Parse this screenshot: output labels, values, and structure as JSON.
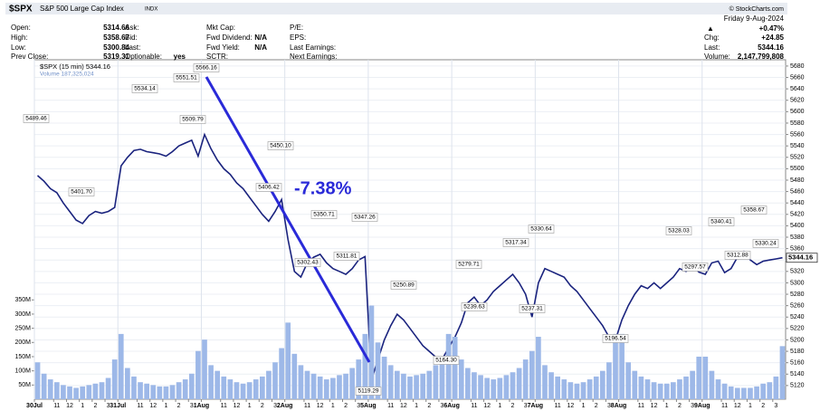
{
  "header": {
    "symbol": "$SPX",
    "name": "S&P 500 Large Cap Index",
    "exchange": "INDX",
    "copyright": "© StockCharts.com",
    "columns": [
      [
        {
          "label": "Open:",
          "value": "5314.66"
        },
        {
          "label": "High:",
          "value": "5358.67"
        },
        {
          "label": "Low:",
          "value": "5300.84"
        },
        {
          "label": "Prev Close:",
          "value": "5319.31"
        }
      ],
      [
        {
          "label": "Ask:"
        },
        {
          "label": "Bid:"
        },
        {
          "label": "Last:"
        },
        {
          "label": "Optionable:",
          "value": "yes"
        }
      ],
      [
        {
          "label": "Mkt Cap:"
        },
        {
          "label": "Fwd Dividend:",
          "value": "N/A"
        },
        {
          "label": "Fwd Yield:",
          "value": "N/A"
        },
        {
          "label": "SCTR:"
        }
      ],
      [
        {
          "label": "P/E:"
        },
        {
          "label": "EPS:"
        },
        {
          "label": "Last Earnings:"
        },
        {
          "label": "Next Earnings:"
        }
      ]
    ],
    "date": "Friday  9-Aug-2024",
    "change_pct": "+0.47%",
    "right": [
      {
        "label": "Chg:",
        "value": "+24.85"
      },
      {
        "label": "Last:",
        "value": "5344.16"
      },
      {
        "label": "Volume:",
        "value": "2,147,799,808"
      }
    ]
  },
  "chart_data": {
    "type": "line",
    "categories": [
      "30Jul",
      null,
      null,
      "11",
      null,
      "12",
      null,
      "1",
      null,
      "2",
      null,
      "3",
      null,
      "31Jul",
      null,
      null,
      "11",
      null,
      "12",
      null,
      "1",
      null,
      "2",
      null,
      "3",
      null,
      "1Aug",
      null,
      null,
      "11",
      null,
      "12",
      null,
      "1",
      null,
      "2",
      null,
      "3",
      null,
      "2Aug",
      null,
      null,
      "11",
      null,
      "12",
      null,
      "1",
      null,
      "2",
      null,
      "3",
      null,
      "5Aug",
      null,
      null,
      "11",
      null,
      "12",
      null,
      "1",
      null,
      "2",
      null,
      "3",
      null,
      "6Aug",
      null,
      null,
      "11",
      null,
      "12",
      null,
      "1",
      null,
      "2",
      null,
      "3",
      null,
      "7Aug",
      null,
      null,
      "11",
      null,
      "12",
      null,
      "1",
      null,
      "2",
      null,
      "3",
      null,
      "8Aug",
      null,
      null,
      "11",
      null,
      "12",
      null,
      "1",
      null,
      "2",
      null,
      "3",
      null,
      "9Aug",
      null,
      null,
      "11",
      null,
      "12",
      null,
      "1",
      null,
      "2",
      null,
      "3",
      null
    ],
    "series": [
      {
        "name": "$SPX (15 min) 5344.16",
        "color": "#1a237e",
        "values": [
          5488,
          5478,
          5465,
          5458,
          5440,
          5425,
          5410,
          5404,
          5418,
          5425,
          5422,
          5425,
          5432,
          5505,
          5520,
          5532,
          5534,
          5530,
          5528,
          5526,
          5522,
          5530,
          5540,
          5545,
          5550,
          5522,
          5560,
          5535,
          5515,
          5500,
          5490,
          5475,
          5465,
          5450,
          5435,
          5420,
          5408,
          5425,
          5446,
          5376,
          5320,
          5310,
          5335,
          5345,
          5350,
          5335,
          5325,
          5320,
          5315,
          5325,
          5340,
          5346,
          5130,
          5165,
          5200,
          5225,
          5245,
          5235,
          5220,
          5205,
          5190,
          5180,
          5170,
          5166,
          5186,
          5205,
          5230,
          5265,
          5275,
          5260,
          5270,
          5285,
          5295,
          5305,
          5315,
          5300,
          5280,
          5240,
          5300,
          5325,
          5320,
          5315,
          5310,
          5295,
          5285,
          5270,
          5255,
          5240,
          5225,
          5205,
          5200,
          5235,
          5260,
          5280,
          5295,
          5290,
          5300,
          5290,
          5300,
          5310,
          5325,
          5320,
          5330,
          5319,
          5315,
          5335,
          5338,
          5318,
          5325,
          5345,
          5355,
          5340,
          5332,
          5338,
          5340,
          5342,
          5344
        ]
      },
      {
        "name": "Volume 187,325,024",
        "type": "bar",
        "axis": "y2",
        "color": "#9db8e8",
        "values": [
          130,
          90,
          70,
          60,
          50,
          45,
          40,
          45,
          50,
          55,
          60,
          75,
          140,
          230,
          110,
          80,
          60,
          55,
          50,
          45,
          45,
          50,
          60,
          70,
          90,
          170,
          210,
          120,
          100,
          80,
          70,
          60,
          55,
          60,
          70,
          80,
          100,
          130,
          180,
          270,
          160,
          120,
          100,
          90,
          80,
          70,
          75,
          85,
          90,
          110,
          140,
          230,
          330,
          200,
          150,
          120,
          100,
          90,
          80,
          85,
          90,
          100,
          120,
          150,
          230,
          220,
          140,
          110,
          95,
          85,
          75,
          70,
          75,
          85,
          95,
          110,
          140,
          170,
          220,
          120,
          95,
          80,
          70,
          60,
          55,
          60,
          70,
          80,
          100,
          130,
          230,
          230,
          130,
          100,
          80,
          70,
          60,
          55,
          55,
          60,
          70,
          80,
          100,
          150,
          150,
          100,
          70,
          55,
          45,
          40,
          40,
          40,
          45,
          55,
          60,
          80,
          187
        ]
      }
    ],
    "ylim": [
      5096,
      5691
    ],
    "yticks": [
      5120,
      5140,
      5160,
      5180,
      5200,
      5220,
      5240,
      5260,
      5280,
      5300,
      5320,
      5340,
      5360,
      5380,
      5400,
      5420,
      5440,
      5460,
      5480,
      5500,
      5520,
      5540,
      5560,
      5580,
      5600,
      5620,
      5640,
      5660,
      5680
    ],
    "y2lim": [
      0,
      1196
    ],
    "y2ticks": [
      {
        "value": 50,
        "label": "50M"
      },
      {
        "value": 100,
        "label": "100M"
      },
      {
        "value": 150,
        "label": "150M"
      },
      {
        "value": 200,
        "label": "200M"
      },
      {
        "value": 250,
        "label": "250M"
      },
      {
        "value": 300,
        "label": "300M"
      },
      {
        "value": 350,
        "label": "350M"
      }
    ],
    "last_price_label": "5344.16",
    "move_label": "-7.38%",
    "price_labels": [
      "5489.46",
      "5401.70",
      "5534.14",
      "5551.51",
      "5509.79",
      "5566.16",
      "5450.10",
      "5406.42",
      "5350.71",
      "5347.26",
      "5302.43",
      "5311.81",
      "5119.29",
      "5250.89",
      "5164.30",
      "5279.71",
      "5239.63",
      "5317.34",
      "5330.64",
      "5237.31",
      "5196.54",
      "5328.03",
      "5297.57",
      "5340.41",
      "5312.88",
      "5358.67",
      "5330.24"
    ]
  }
}
